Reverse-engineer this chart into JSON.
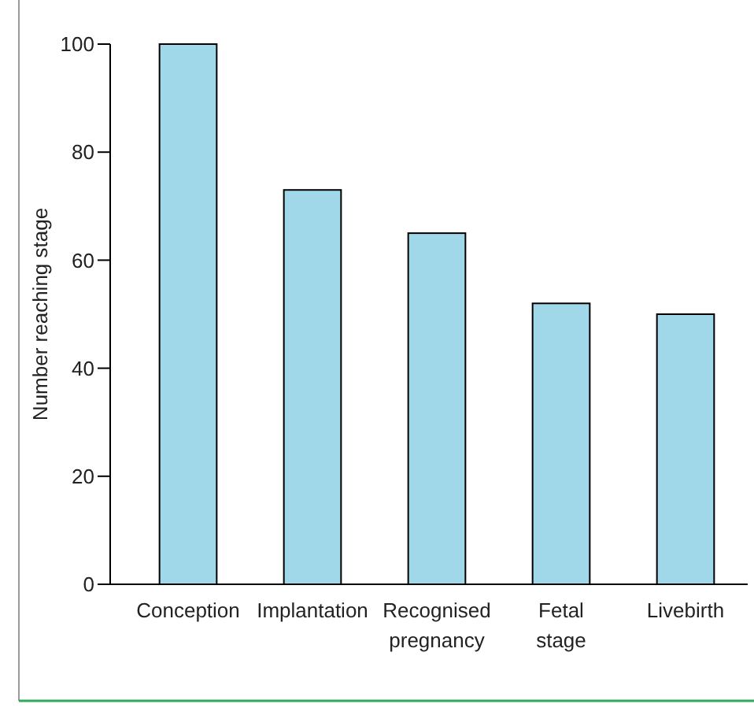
{
  "chart_data": {
    "type": "bar",
    "ylabel": "Number reaching stage",
    "categories": [
      "Conception",
      "Implantation",
      "Recognised pregnancy",
      "Fetal stage",
      "Livebirth"
    ],
    "values": [
      100,
      73,
      65,
      52,
      50
    ],
    "color": "#a0d8ea",
    "ylim": [
      0,
      100
    ],
    "yticks": [
      0,
      20,
      40,
      60,
      80,
      100
    ]
  }
}
